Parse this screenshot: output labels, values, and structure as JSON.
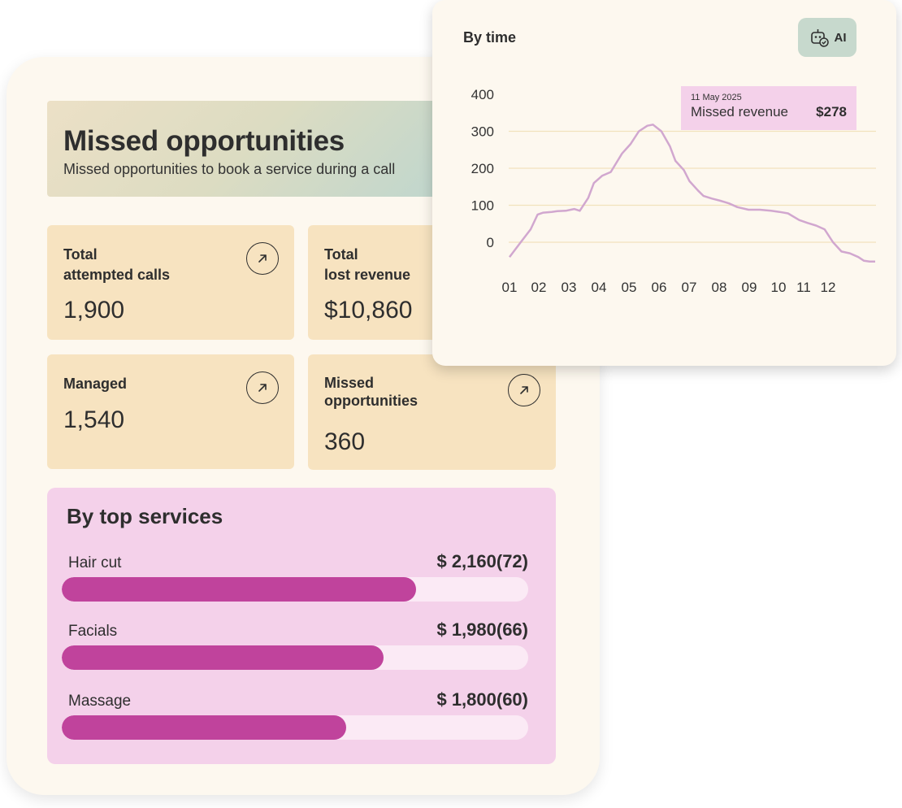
{
  "header": {
    "title": "Missed opportunities",
    "subtitle": "Missed opportunities to book a service during a call"
  },
  "stats": [
    {
      "label": "Total\nattempted calls",
      "value": "1,900"
    },
    {
      "label": "Total\nlost revenue",
      "value": "$10,860"
    },
    {
      "label": "Managed",
      "value": "1,540"
    },
    {
      "label": "Missed\nopportunities",
      "value": "360"
    }
  ],
  "services": {
    "title": "By top services",
    "items": [
      {
        "name": "Hair cut",
        "amount": "$ 2,160(72)",
        "fraction": 0.76
      },
      {
        "name": "Facials",
        "amount": "$ 1,980(66)",
        "fraction": 0.69
      },
      {
        "name": "Massage",
        "amount": "$ 1,800(60)",
        "fraction": 0.61
      }
    ]
  },
  "time_chart": {
    "title": "By time",
    "ai_label": "AI",
    "tooltip": {
      "date": "11 May 2025",
      "label": "Missed revenue",
      "value": "$278"
    }
  },
  "colors": {
    "line": "#d1a7cf",
    "grid": "#f1e2bd",
    "bar": "#c0439c",
    "stat_card": "#f7e3c0"
  },
  "chart_data": {
    "type": "line",
    "title": "By time",
    "ylim": [
      -50,
      400
    ],
    "yticks": [
      400,
      300,
      200,
      100,
      0
    ],
    "grid": true,
    "categories": [
      "01",
      "02",
      "03",
      "04",
      "05",
      "06",
      "07",
      "08",
      "09",
      "10",
      "11",
      "12"
    ],
    "x": [
      0.0,
      0.4,
      0.75,
      1.0,
      1.2,
      1.5,
      1.7,
      2.0,
      2.3,
      2.5,
      2.8,
      3.0,
      3.3,
      3.6,
      4.0,
      4.3,
      4.6,
      4.9,
      5.1,
      5.4,
      5.7,
      5.9,
      6.2,
      6.4,
      6.7,
      6.9,
      7.2,
      7.5,
      7.8,
      8.1,
      8.5,
      8.9,
      9.3,
      9.6,
      9.9,
      10.3,
      10.6,
      10.9,
      11.2,
      11.5,
      11.8,
      12.1,
      12.4,
      12.6,
      12.8,
      13.0
    ],
    "series": [
      {
        "name": "Missed revenue",
        "values": [
          -40,
          0,
          35,
          75,
          80,
          82,
          84,
          85,
          90,
          85,
          120,
          160,
          180,
          190,
          240,
          265,
          300,
          315,
          318,
          300,
          260,
          220,
          195,
          165,
          140,
          125,
          118,
          112,
          105,
          95,
          88,
          88,
          85,
          82,
          78,
          60,
          52,
          45,
          35,
          0,
          -25,
          -30,
          -40,
          -50,
          -52,
          -52
        ]
      }
    ]
  }
}
